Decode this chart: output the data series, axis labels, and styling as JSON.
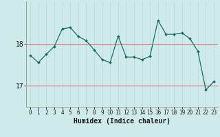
{
  "x": [
    0,
    1,
    2,
    3,
    4,
    5,
    6,
    7,
    8,
    9,
    10,
    11,
    12,
    13,
    14,
    15,
    16,
    17,
    18,
    19,
    20,
    21,
    22,
    23
  ],
  "y": [
    17.72,
    17.55,
    17.75,
    17.93,
    18.35,
    18.38,
    18.17,
    18.07,
    17.85,
    17.62,
    17.55,
    18.18,
    17.68,
    17.68,
    17.62,
    17.7,
    18.55,
    18.22,
    18.22,
    18.25,
    18.12,
    17.82,
    16.9,
    17.1
  ],
  "xlabel": "Humidex (Indice chaleur)",
  "ylim": [
    16.5,
    19.0
  ],
  "yticks": [
    17,
    18
  ],
  "bg_color": "#ceeaea",
  "line_color": "#1f6b6b",
  "marker_color": "#1f6b6b",
  "grid_color_v": "#b8d8d8",
  "grid_color_h": "#e8b0b0",
  "hline_color": "#d06060",
  "xlabel_fontsize": 7,
  "tick_fontsize": 5.5,
  "ytick_fontsize": 7
}
